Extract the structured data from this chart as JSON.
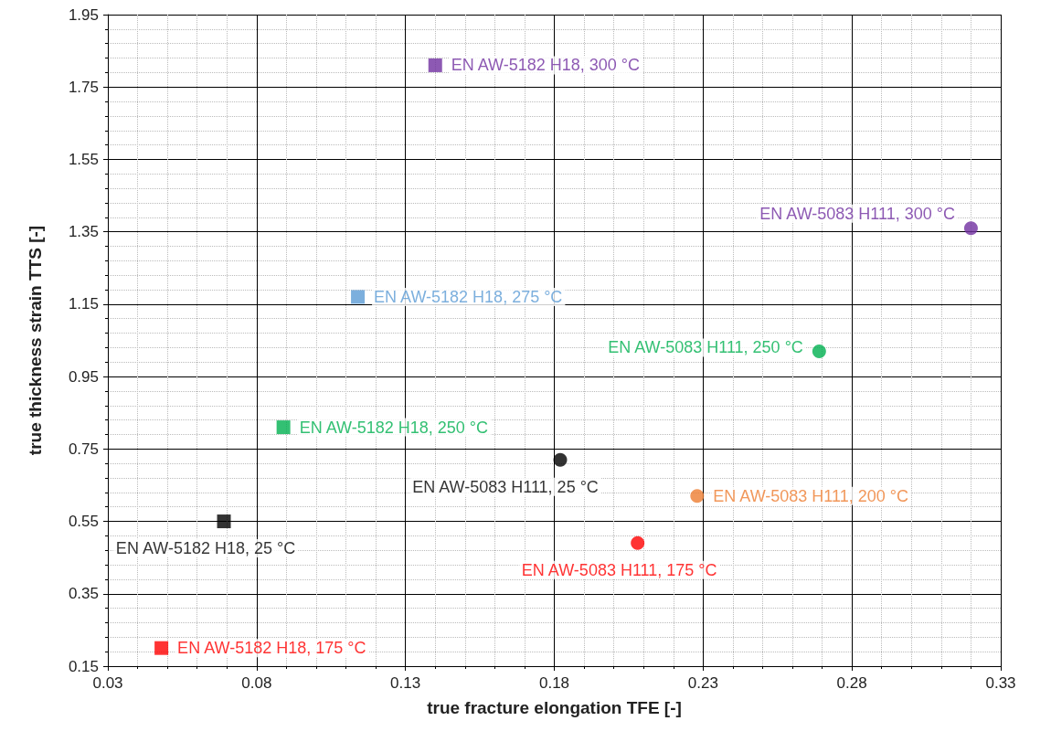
{
  "chart_data": {
    "type": "scatter",
    "xlabel": "true fracture elongation TFE [-]",
    "ylabel": "true thickness strain TTS [-]",
    "xlim": [
      0.03,
      0.33
    ],
    "xticks": [
      0.03,
      0.08,
      0.13,
      0.18,
      0.23,
      0.28,
      0.33
    ],
    "ylim": [
      0.15,
      1.95
    ],
    "yticks": [
      0.15,
      0.35,
      0.55,
      0.75,
      0.95,
      1.15,
      1.35,
      1.55,
      1.75,
      1.95
    ],
    "grid": true,
    "legend": false,
    "series": [
      {
        "name": "EN AW-5182 H18, 25 °C",
        "color": "#000000",
        "marker": "square",
        "x": [
          0.069
        ],
        "values": [
          0.55
        ]
      },
      {
        "name": "EN AW-5182 H18, 175 °C",
        "color": "#ff0000",
        "marker": "square",
        "x": [
          0.048
        ],
        "values": [
          0.2
        ]
      },
      {
        "name": "EN AW-5182 H18, 250 °C",
        "color": "#00b050",
        "marker": "square",
        "x": [
          0.089
        ],
        "values": [
          0.81
        ]
      },
      {
        "name": "EN AW-5182 H18, 275 °C",
        "color": "#5b9bd5",
        "marker": "square",
        "x": [
          0.114
        ],
        "values": [
          1.17
        ]
      },
      {
        "name": "EN AW-5182 H18, 300 °C",
        "color": "#7030a0",
        "marker": "square",
        "x": [
          0.14
        ],
        "values": [
          1.81
        ]
      },
      {
        "name": "EN AW-5083 H111, 25 °C",
        "color": "#000000",
        "marker": "circle",
        "x": [
          0.182
        ],
        "values": [
          0.72
        ]
      },
      {
        "name": "EN AW-5083 H111, 175 °C",
        "color": "#ff0000",
        "marker": "circle",
        "x": [
          0.208
        ],
        "values": [
          0.49
        ]
      },
      {
        "name": "EN AW-5083 H111, 200 °C",
        "color": "#ed7d31",
        "marker": "circle",
        "x": [
          0.228
        ],
        "values": [
          0.62
        ]
      },
      {
        "name": "EN AW-5083 H111, 250 °C",
        "color": "#00b050",
        "marker": "circle",
        "x": [
          0.269
        ],
        "values": [
          1.02
        ]
      },
      {
        "name": "EN AW-5083 H111, 300 °C",
        "color": "#7030a0",
        "marker": "circle",
        "x": [
          0.32
        ],
        "values": [
          1.36
        ]
      }
    ]
  }
}
